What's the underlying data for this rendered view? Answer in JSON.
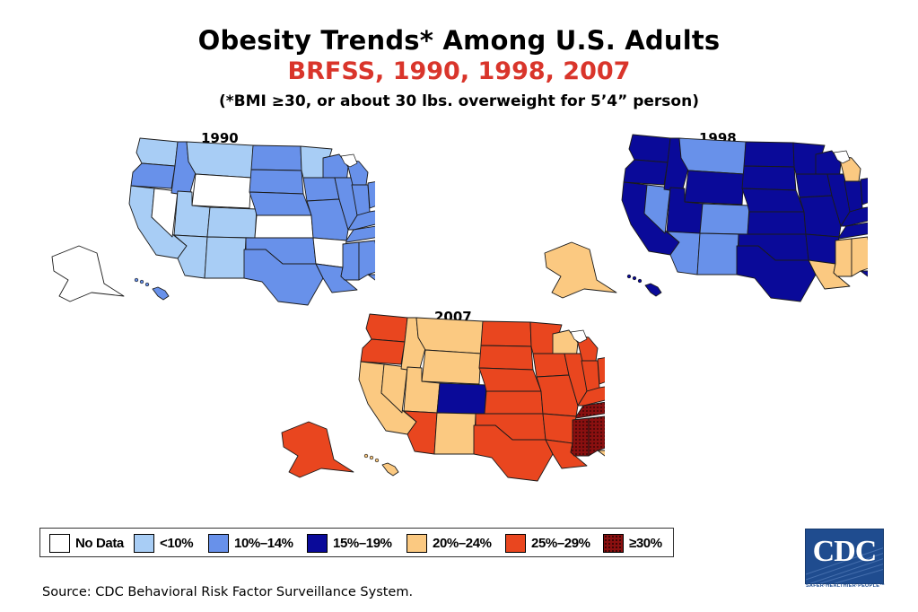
{
  "title": "Obesity Trends* Among U.S. Adults",
  "subtitle": "BRFSS, 1990, 1998, 2007",
  "footnote": "(*BMI ≥30, or about 30 lbs. overweight for 5’4” person)",
  "colors": {
    "no_data": "#ffffff",
    "lt10": "#a8cdf5",
    "10_14": "#6891ea",
    "15_19": "#0a0a99",
    "20_24": "#fbc981",
    "25_29": "#e9461f",
    "ge30": "#8a1010",
    "border": "#1b1b1b"
  },
  "legend": [
    {
      "key": "no_data",
      "label": "No Data"
    },
    {
      "key": "lt10",
      "label": "<10%"
    },
    {
      "key": "10_14",
      "label": "10%–14%"
    },
    {
      "key": "15_19",
      "label": "15%–19%"
    },
    {
      "key": "20_24",
      "label": "20%–24%"
    },
    {
      "key": "25_29",
      "label": "25%–29%"
    },
    {
      "key": "ge30",
      "label": "≥30%"
    }
  ],
  "maps": [
    {
      "year": "1990",
      "base": "10_14",
      "regions": {
        "WA": "lt10",
        "OR": "10_14",
        "CA": "lt10",
        "NV": "no_data",
        "ID": "10_14",
        "MT": "lt10",
        "WY": "no_data",
        "UT": "lt10",
        "CO": "lt10",
        "AZ": "lt10",
        "NM": "lt10",
        "ND": "10_14",
        "SD": "10_14",
        "NE": "10_14",
        "KS": "no_data",
        "OK": "10_14",
        "TX": "10_14",
        "MN": "lt10",
        "IA": "10_14",
        "MO": "10_14",
        "AR": "no_data",
        "LA": "10_14",
        "WI": "10_14",
        "IL": "10_14",
        "MI": "10_14",
        "IN": "10_14",
        "OH": "10_14",
        "KY": "10_14",
        "TN": "10_14",
        "MS": "10_14",
        "AL": "10_14",
        "GA": "10_14",
        "FL": "10_14",
        "SC": "10_14",
        "NC": "10_14",
        "VA": "lt10",
        "WV": "10_14",
        "PA": "10_14",
        "NY": "10_14",
        "NE_US": "lt10",
        "ME": "10_14",
        "AK": "no_data",
        "HI": "10_14"
      }
    },
    {
      "year": "1998",
      "base": "15_19",
      "regions": {
        "WA": "15_19",
        "OR": "15_19",
        "CA": "15_19",
        "NV": "10_14",
        "ID": "15_19",
        "MT": "10_14",
        "WY": "15_19",
        "UT": "15_19",
        "CO": "10_14",
        "AZ": "10_14",
        "NM": "10_14",
        "ND": "15_19",
        "SD": "15_19",
        "NE": "15_19",
        "KS": "15_19",
        "OK": "15_19",
        "TX": "15_19",
        "MN": "15_19",
        "IA": "15_19",
        "MO": "15_19",
        "AR": "15_19",
        "LA": "20_24",
        "WI": "15_19",
        "IL": "15_19",
        "MI": "20_24",
        "IN": "15_19",
        "OH": "15_19",
        "KY": "15_19",
        "TN": "15_19",
        "MS": "20_24",
        "AL": "20_24",
        "GA": "15_19",
        "FL": "15_19",
        "SC": "20_24",
        "NC": "15_19",
        "VA": "15_19",
        "WV": "20_24",
        "PA": "15_19",
        "NY": "15_19",
        "NE_US": "10_14",
        "ME": "15_19",
        "AK": "20_24",
        "HI": "15_19"
      }
    },
    {
      "year": "2007",
      "base": "25_29",
      "regions": {
        "WA": "25_29",
        "OR": "25_29",
        "CA": "20_24",
        "NV": "20_24",
        "ID": "20_24",
        "MT": "20_24",
        "WY": "20_24",
        "UT": "20_24",
        "CO": "15_19",
        "AZ": "25_29",
        "NM": "20_24",
        "ND": "25_29",
        "SD": "25_29",
        "NE": "25_29",
        "KS": "25_29",
        "OK": "25_29",
        "TX": "25_29",
        "MN": "25_29",
        "IA": "25_29",
        "MO": "25_29",
        "AR": "25_29",
        "LA": "25_29",
        "WI": "20_24",
        "IL": "25_29",
        "MI": "25_29",
        "IN": "25_29",
        "OH": "25_29",
        "KY": "25_29",
        "TN": "ge30",
        "MS": "ge30",
        "AL": "ge30",
        "GA": "25_29",
        "FL": "20_24",
        "SC": "25_29",
        "NC": "25_29",
        "VA": "20_24",
        "WV": "25_29",
        "PA": "25_29",
        "NY": "25_29",
        "NE_US": "20_24",
        "ME": "20_24",
        "AK": "25_29",
        "HI": "20_24"
      }
    }
  ],
  "source": "Source: CDC Behavioral Risk Factor Surveillance System.",
  "logo": {
    "text": "CDC",
    "tagline": "SAFER·HEALTHIER·PEOPLE™"
  }
}
